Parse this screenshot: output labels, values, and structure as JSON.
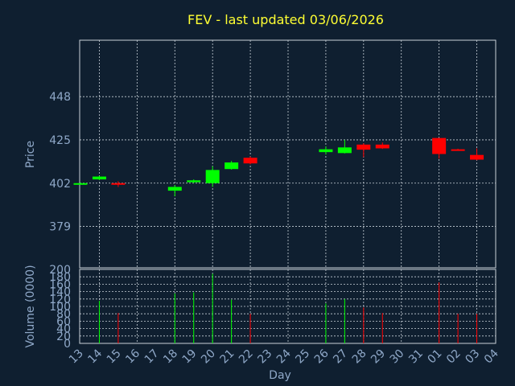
{
  "chart_data": {
    "type": "candlestick",
    "title": "FEV - last updated 03/06/2026",
    "xlabel": "Day",
    "ylabel": "Price",
    "volume_ylabel": "Volume (0000)",
    "x_ticks": [
      "13",
      "14",
      "15",
      "16",
      "17",
      "18",
      "19",
      "20",
      "21",
      "22",
      "23",
      "24",
      "25",
      "26",
      "27",
      "28",
      "29",
      "30",
      "31",
      "01",
      "02",
      "03",
      "04"
    ],
    "price_ticks": [
      379,
      402,
      425,
      448
    ],
    "price_range": [
      357,
      478
    ],
    "volume_ticks": [
      0,
      20,
      40,
      60,
      80,
      100,
      120,
      140,
      160,
      180,
      200
    ],
    "volume_range": [
      0,
      200
    ],
    "colors": {
      "up": "#00ff00",
      "down": "#ff0000",
      "background": "#0f1f30"
    },
    "candles": [
      {
        "x": "13",
        "open": 401.5,
        "close": 402.0,
        "high": 402.2,
        "low": 401.3,
        "volume": 0
      },
      {
        "x": "14",
        "open": 404.0,
        "close": 405.5,
        "high": 405.8,
        "low": 403.6,
        "volume": 115
      },
      {
        "x": "15",
        "open": 402.0,
        "close": 401.5,
        "high": 403.0,
        "low": 400.0,
        "volume": 82
      },
      {
        "x": "18",
        "open": 398.0,
        "close": 400.0,
        "high": 401.0,
        "low": 395.0,
        "volume": 135
      },
      {
        "x": "19",
        "open": 402.5,
        "close": 403.5,
        "high": 404.0,
        "low": 402.0,
        "volume": 138
      },
      {
        "x": "20",
        "open": 402.0,
        "close": 409.0,
        "high": 411.0,
        "low": 400.0,
        "volume": 188
      },
      {
        "x": "21",
        "open": 409.5,
        "close": 413.0,
        "high": 413.8,
        "low": 409.2,
        "volume": 118
      },
      {
        "x": "22",
        "open": 415.5,
        "close": 412.5,
        "high": 416.2,
        "low": 412.0,
        "volume": 80
      },
      {
        "x": "26",
        "open": 418.5,
        "close": 420.0,
        "high": 421.5,
        "low": 417.2,
        "volume": 108
      },
      {
        "x": "27",
        "open": 418.0,
        "close": 421.0,
        "high": 425.0,
        "low": 417.8,
        "volume": 120
      },
      {
        "x": "28",
        "open": 422.5,
        "close": 419.8,
        "high": 423.2,
        "low": 415.8,
        "volume": 97
      },
      {
        "x": "29",
        "open": 422.5,
        "close": 420.5,
        "high": 423.6,
        "low": 420.2,
        "volume": 82
      },
      {
        "x": "01",
        "open": 426.0,
        "close": 417.5,
        "high": 426.0,
        "low": 415.0,
        "volume": 165
      },
      {
        "x": "02",
        "open": 420.0,
        "close": 419.5,
        "high": 420.3,
        "low": 419.2,
        "volume": 80
      },
      {
        "x": "03",
        "open": 417.0,
        "close": 414.5,
        "high": 420.5,
        "low": 414.2,
        "volume": 80
      }
    ]
  }
}
